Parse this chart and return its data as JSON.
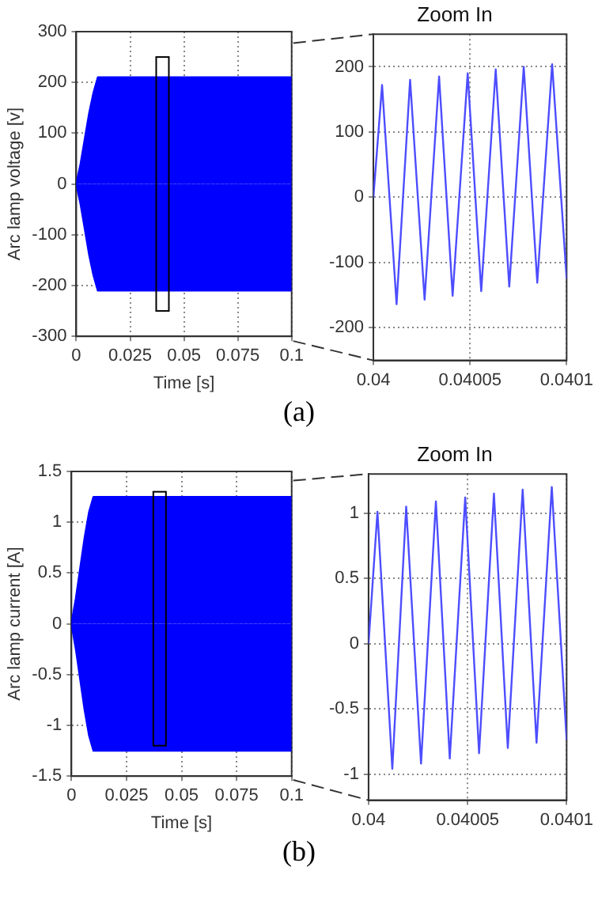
{
  "chart_data": [
    {
      "type": "area",
      "xlabel": "Time [s]",
      "ylabel": "Arc lamp voltage [v]",
      "annotations": [
        "(a)"
      ],
      "x": [
        0,
        0.002,
        0.004,
        0.006,
        0.008,
        0.01,
        0.1
      ],
      "xlim": [
        0,
        0.1
      ],
      "xticks": [
        0,
        0.025,
        0.05,
        0.075,
        0.1
      ],
      "ylim": [
        -300,
        300
      ],
      "yticks": [
        -300,
        -200,
        -100,
        0,
        100,
        200,
        300
      ],
      "grid": true,
      "legend": false,
      "marker": "none",
      "series": [
        {
          "color": "#0000ff",
          "values": [
            0,
            40,
            90,
            140,
            180,
            210,
            210
          ]
        },
        {
          "color": "#0000ff",
          "values": [
            0,
            -40,
            -90,
            -140,
            -180,
            -210,
            -210
          ]
        }
      ]
    },
    {
      "type": "line",
      "title": "Zoom In",
      "x": [
        0.04,
        0.0400045,
        0.040012,
        0.040019,
        0.0400265,
        0.040034,
        0.040041,
        0.0400488,
        0.0400558,
        0.0400633,
        0.0400703,
        0.0400778,
        0.0400848,
        0.0400925,
        0.0401
      ],
      "xlim": [
        0.04,
        0.0401
      ],
      "xticks": [
        0.04,
        0.04005,
        0.0401
      ],
      "ylim": [
        -250,
        250
      ],
      "yticks": [
        -200,
        -100,
        0,
        100,
        200
      ],
      "grid": true,
      "legend": false,
      "marker": "none",
      "series": [
        {
          "color": "#4d4dff",
          "values": [
            0,
            172,
            -164,
            180,
            -157,
            185,
            -151,
            190,
            -144,
            196,
            -137,
            200,
            -131,
            204,
            -125
          ]
        }
      ]
    },
    {
      "type": "area",
      "xlabel": "Time [s]",
      "ylabel": "Arc lamp current [A]",
      "annotations": [
        "(b)"
      ],
      "x": [
        0,
        0.002,
        0.004,
        0.006,
        0.008,
        0.01,
        0.1
      ],
      "xlim": [
        0,
        0.1
      ],
      "xticks": [
        0,
        0.025,
        0.05,
        0.075,
        0.1
      ],
      "ylim": [
        -1.5,
        1.5
      ],
      "yticks": [
        -1.5,
        -1,
        -0.5,
        0,
        0.5,
        1,
        1.5
      ],
      "grid": true,
      "legend": false,
      "marker": "none",
      "series": [
        {
          "color": "#0000ff",
          "values": [
            0,
            0.25,
            0.55,
            0.85,
            1.1,
            1.25,
            1.25
          ]
        },
        {
          "color": "#0000ff",
          "values": [
            0,
            -0.25,
            -0.55,
            -0.85,
            -1.1,
            -1.25,
            -1.25
          ]
        }
      ]
    },
    {
      "type": "line",
      "title": "Zoom In",
      "x": [
        0.04,
        0.0400045,
        0.040012,
        0.040019,
        0.0400265,
        0.040034,
        0.040041,
        0.0400488,
        0.0400558,
        0.0400633,
        0.0400703,
        0.0400778,
        0.0400848,
        0.0400925,
        0.0401
      ],
      "xlim": [
        0.04,
        0.0401
      ],
      "xticks": [
        0.04,
        0.04005,
        0.0401
      ],
      "ylim": [
        -1.2,
        1.3
      ],
      "yticks": [
        -1,
        -0.5,
        0,
        0.5,
        1
      ],
      "grid": true,
      "legend": false,
      "marker": "none",
      "series": [
        {
          "color": "#4d4dff",
          "values": [
            0,
            1.01,
            -0.96,
            1.05,
            -0.92,
            1.09,
            -0.88,
            1.12,
            -0.84,
            1.15,
            -0.8,
            1.18,
            -0.76,
            1.2,
            -0.74
          ]
        }
      ]
    }
  ]
}
